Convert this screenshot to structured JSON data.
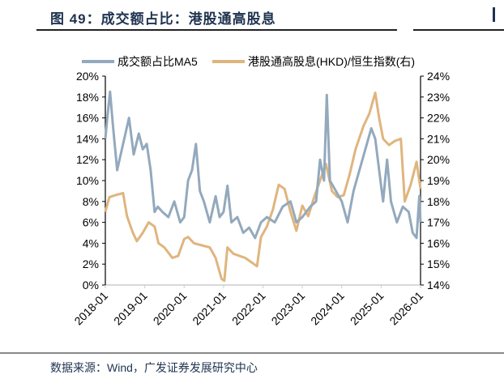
{
  "title": "图 49：成交额占比：港股通高股息",
  "source": "数据来源：Wind，广发证券发展研究中心",
  "chart_data": {
    "type": "line",
    "title": "成交额占比：港股通高股息",
    "legend_position": "top",
    "x_ticks": [
      "2018-01",
      "2019-01",
      "2020-01",
      "2021-01",
      "2022-01",
      "2023-01",
      "2024-01",
      "2025-01",
      "2026-01"
    ],
    "xlim": [
      2018.0,
      2026.0
    ],
    "y_left": {
      "ticks": [
        "0%",
        "2%",
        "4%",
        "6%",
        "8%",
        "10%",
        "12%",
        "14%",
        "16%",
        "18%",
        "20%"
      ],
      "ylim": [
        0,
        20
      ]
    },
    "y_right": {
      "ticks": [
        "14%",
        "15%",
        "16%",
        "17%",
        "18%",
        "19%",
        "20%",
        "21%",
        "22%",
        "23%",
        "24%"
      ],
      "ylim": [
        14,
        24
      ]
    },
    "series": [
      {
        "name": "成交额占比MA5",
        "axis": "left",
        "color": "#93a9bd",
        "x": [
          2018.0,
          2018.05,
          2018.12,
          2018.2,
          2018.3,
          2018.45,
          2018.6,
          2018.72,
          2018.85,
          2018.95,
          2019.05,
          2019.15,
          2019.25,
          2019.33,
          2019.45,
          2019.6,
          2019.75,
          2019.9,
          2020.0,
          2020.1,
          2020.2,
          2020.3,
          2020.4,
          2020.5,
          2020.65,
          2020.8,
          2020.9,
          2021.0,
          2021.1,
          2021.2,
          2021.35,
          2021.5,
          2021.65,
          2021.8,
          2021.95,
          2022.1,
          2022.3,
          2022.5,
          2022.7,
          2022.85,
          2023.0,
          2023.2,
          2023.35,
          2023.45,
          2023.55,
          2023.62,
          2023.7,
          2023.85,
          2024.0,
          2024.15,
          2024.3,
          2024.45,
          2024.6,
          2024.75,
          2024.85,
          2024.95,
          2025.05,
          2025.15,
          2025.25,
          2025.4,
          2025.55,
          2025.7,
          2025.8,
          2025.9,
          2025.97,
          2026.0
        ],
        "y": [
          14,
          16,
          18.5,
          15,
          11,
          13.5,
          16,
          12.5,
          14.5,
          13,
          13.5,
          11,
          7,
          7.5,
          7,
          6.5,
          8,
          6,
          6.5,
          10,
          11,
          13.5,
          9,
          8,
          6,
          8.5,
          6.5,
          7,
          9.5,
          6,
          6.5,
          5,
          5.5,
          4.5,
          6,
          6.5,
          6,
          7.5,
          8,
          6,
          6.5,
          7.5,
          8,
          12,
          10,
          18.2,
          10,
          9,
          8,
          6,
          9,
          11,
          13,
          15,
          14,
          11,
          8,
          12,
          8,
          6,
          7.5,
          7,
          5,
          4.5,
          8.5,
          6
        ]
      },
      {
        "name": "港股通高股息(HKD)/恒生指数(右)",
        "axis": "right",
        "color": "#dfb57e",
        "x": [
          2018.0,
          2018.1,
          2018.25,
          2018.45,
          2018.55,
          2018.7,
          2018.8,
          2018.95,
          2019.1,
          2019.25,
          2019.35,
          2019.5,
          2019.7,
          2019.85,
          2020.0,
          2020.1,
          2020.25,
          2020.45,
          2020.65,
          2020.8,
          2020.95,
          2021.02,
          2021.1,
          2021.25,
          2021.4,
          2021.55,
          2021.7,
          2021.85,
          2021.95,
          2022.1,
          2022.25,
          2022.4,
          2022.55,
          2022.7,
          2022.85,
          2023.0,
          2023.15,
          2023.3,
          2023.45,
          2023.6,
          2023.75,
          2023.9,
          2024.05,
          2024.2,
          2024.35,
          2024.55,
          2024.7,
          2024.85,
          2024.95,
          2025.05,
          2025.2,
          2025.35,
          2025.5,
          2025.6,
          2025.75,
          2025.9,
          2026.0
        ],
        "y": [
          17.5,
          18.2,
          18.3,
          18.4,
          17.3,
          16.5,
          16.1,
          16.5,
          17,
          16.8,
          16,
          15.8,
          15.3,
          15.4,
          16.2,
          16.3,
          16,
          15.9,
          15.8,
          15.3,
          14.3,
          14.2,
          15.8,
          15.5,
          15.4,
          15.3,
          15.1,
          14.9,
          16.3,
          16.8,
          17.6,
          18.8,
          18.6,
          17.5,
          16.6,
          17.8,
          17.3,
          18.2,
          19,
          19.8,
          18.5,
          18.2,
          18.3,
          19.3,
          20.5,
          21.6,
          22.2,
          23.2,
          22,
          21,
          20.7,
          20.9,
          21,
          18,
          18.8,
          19.9,
          18.6
        ]
      }
    ]
  }
}
